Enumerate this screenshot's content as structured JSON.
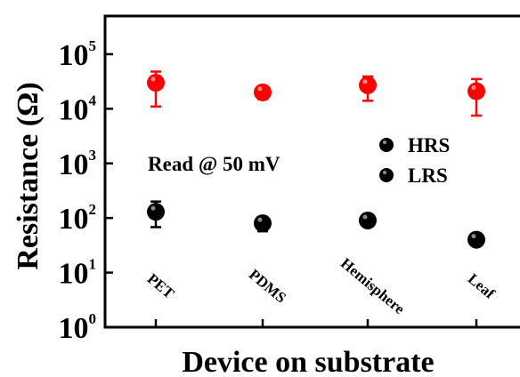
{
  "chart_data": {
    "type": "scatter",
    "title": "",
    "xlabel": "Device on substrate",
    "ylabel": "Resistance (Ω)",
    "yscale": "log",
    "ylim": [
      1,
      500000
    ],
    "yticks": [
      {
        "base": "10",
        "exp": "0",
        "value": 1
      },
      {
        "base": "10",
        "exp": "1",
        "value": 10
      },
      {
        "base": "10",
        "exp": "2",
        "value": 100
      },
      {
        "base": "10",
        "exp": "3",
        "value": 1000
      },
      {
        "base": "10",
        "exp": "4",
        "value": 10000
      },
      {
        "base": "10",
        "exp": "5",
        "value": 100000
      }
    ],
    "categories": [
      "PET",
      "PDMS",
      "Hemisphere",
      "Leaf"
    ],
    "annotation": "Read @ 50 mV",
    "legend_placement": "center-right",
    "series": [
      {
        "name": "HRS",
        "color": "#ff0000",
        "legend_marker_color": "#000000",
        "values": [
          30000,
          20000,
          27000,
          21000
        ],
        "err_low": [
          11000,
          15000,
          14000,
          7500
        ],
        "err_high": [
          48000,
          24000,
          39000,
          35000
        ]
      },
      {
        "name": "LRS",
        "color": "#000000",
        "legend_marker_color": "#000000",
        "values": [
          130,
          80,
          90,
          40
        ],
        "err_low": [
          68,
          57,
          85,
          38
        ],
        "err_high": [
          200,
          98,
          95,
          42
        ]
      }
    ]
  }
}
